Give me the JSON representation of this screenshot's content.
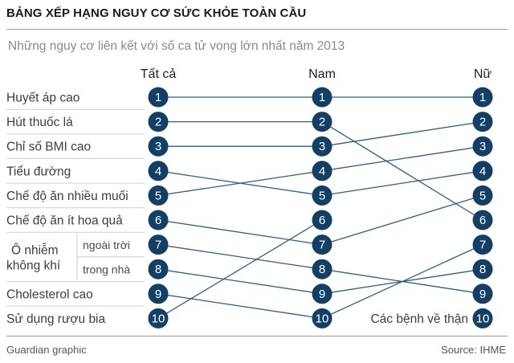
{
  "header": {
    "title": "BẢNG XẾP HẠNG NGUY CƠ SỨC KHỎE TOÀN CẦU",
    "subtitle": "Những nguy cơ liên kết với số ca tử vong lớn nhất năm 2013"
  },
  "footer": {
    "credit": "Guardian graphic",
    "source": "Source: IHME"
  },
  "colors": {
    "circle": "#123f63",
    "line": "#2e5f82",
    "separator": "#cfcfcf"
  },
  "chart_data": {
    "type": "slope-rank",
    "columns": [
      "Tất cả",
      "Nam",
      "Nữ"
    ],
    "group_label": [
      "Ô nhiễm",
      "không khí"
    ],
    "risks": [
      {
        "label": "Huyết áp cao",
        "ranks": [
          1,
          1,
          1
        ]
      },
      {
        "label": "Hút thuốc lá",
        "ranks": [
          2,
          2,
          6
        ]
      },
      {
        "label": "Chỉ số BMI cao",
        "ranks": [
          3,
          3,
          2
        ]
      },
      {
        "label": "Tiểu đường",
        "ranks": [
          4,
          5,
          4
        ]
      },
      {
        "label": "Chế độ ăn nhiều muối",
        "ranks": [
          5,
          4,
          3
        ]
      },
      {
        "label": "Chế độ ăn ít hoa quả",
        "ranks": [
          6,
          7,
          5
        ]
      },
      {
        "label": "ngoài trời",
        "ranks": [
          7,
          8,
          9
        ]
      },
      {
        "label": "trong nhà",
        "ranks": [
          8,
          9,
          8
        ]
      },
      {
        "label": "Cholesterol cao",
        "ranks": [
          9,
          10,
          7
        ]
      },
      {
        "label": "Sử dụng rượu bia",
        "ranks": [
          10,
          6,
          null
        ]
      }
    ],
    "extra_rank_labels": [
      {
        "column": 2,
        "rank": 10,
        "label": "Các bệnh về thận"
      }
    ]
  }
}
